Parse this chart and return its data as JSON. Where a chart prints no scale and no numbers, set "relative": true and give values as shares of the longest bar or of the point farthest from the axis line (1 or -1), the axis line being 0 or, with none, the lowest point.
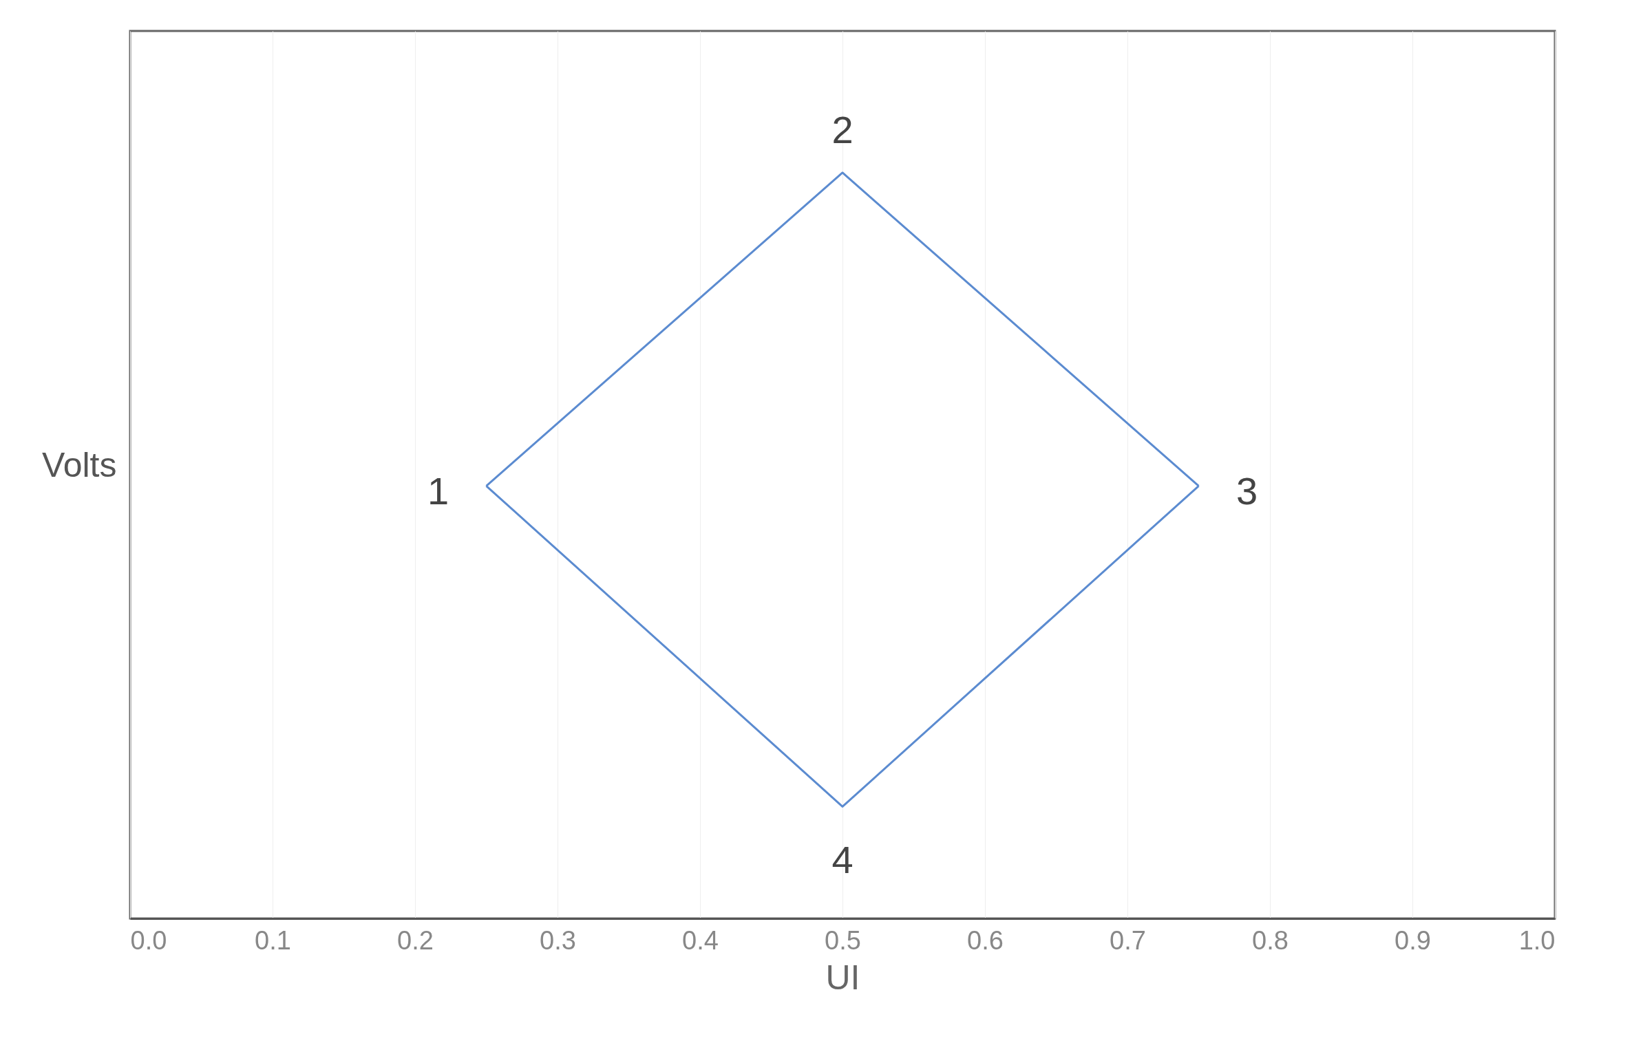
{
  "chart_data": {
    "type": "line",
    "xlabel": "UI",
    "ylabel": "Volts",
    "relative": true,
    "x": [
      0.25,
      0.5,
      0.75
    ],
    "series": [
      {
        "color": "#5b8bd0",
        "values": [
          0.58,
          1,
          0.58
        ]
      },
      {
        "color": "#5b8bd0",
        "values": [
          0.58,
          0.15,
          0.58
        ]
      }
    ],
    "xlim": [
      0,
      1
    ],
    "xticks": [
      {
        "value": 0,
        "label": "0.0"
      },
      0.1,
      0.2,
      0.3,
      0.4,
      0.5,
      0.6,
      0.7,
      0.8,
      0.9,
      {
        "value": 1,
        "label": "1.0"
      }
    ],
    "grid": "x",
    "marker": "none",
    "line_style": "solid",
    "annotations": [
      {
        "text": "1",
        "x": 0.25,
        "y": 0.58
      },
      {
        "text": "2",
        "x": 0.5,
        "y": 1
      },
      {
        "text": "3",
        "x": 0.75,
        "y": 0.58
      },
      {
        "text": "4",
        "x": 0.5,
        "y": 0.15
      }
    ]
  }
}
